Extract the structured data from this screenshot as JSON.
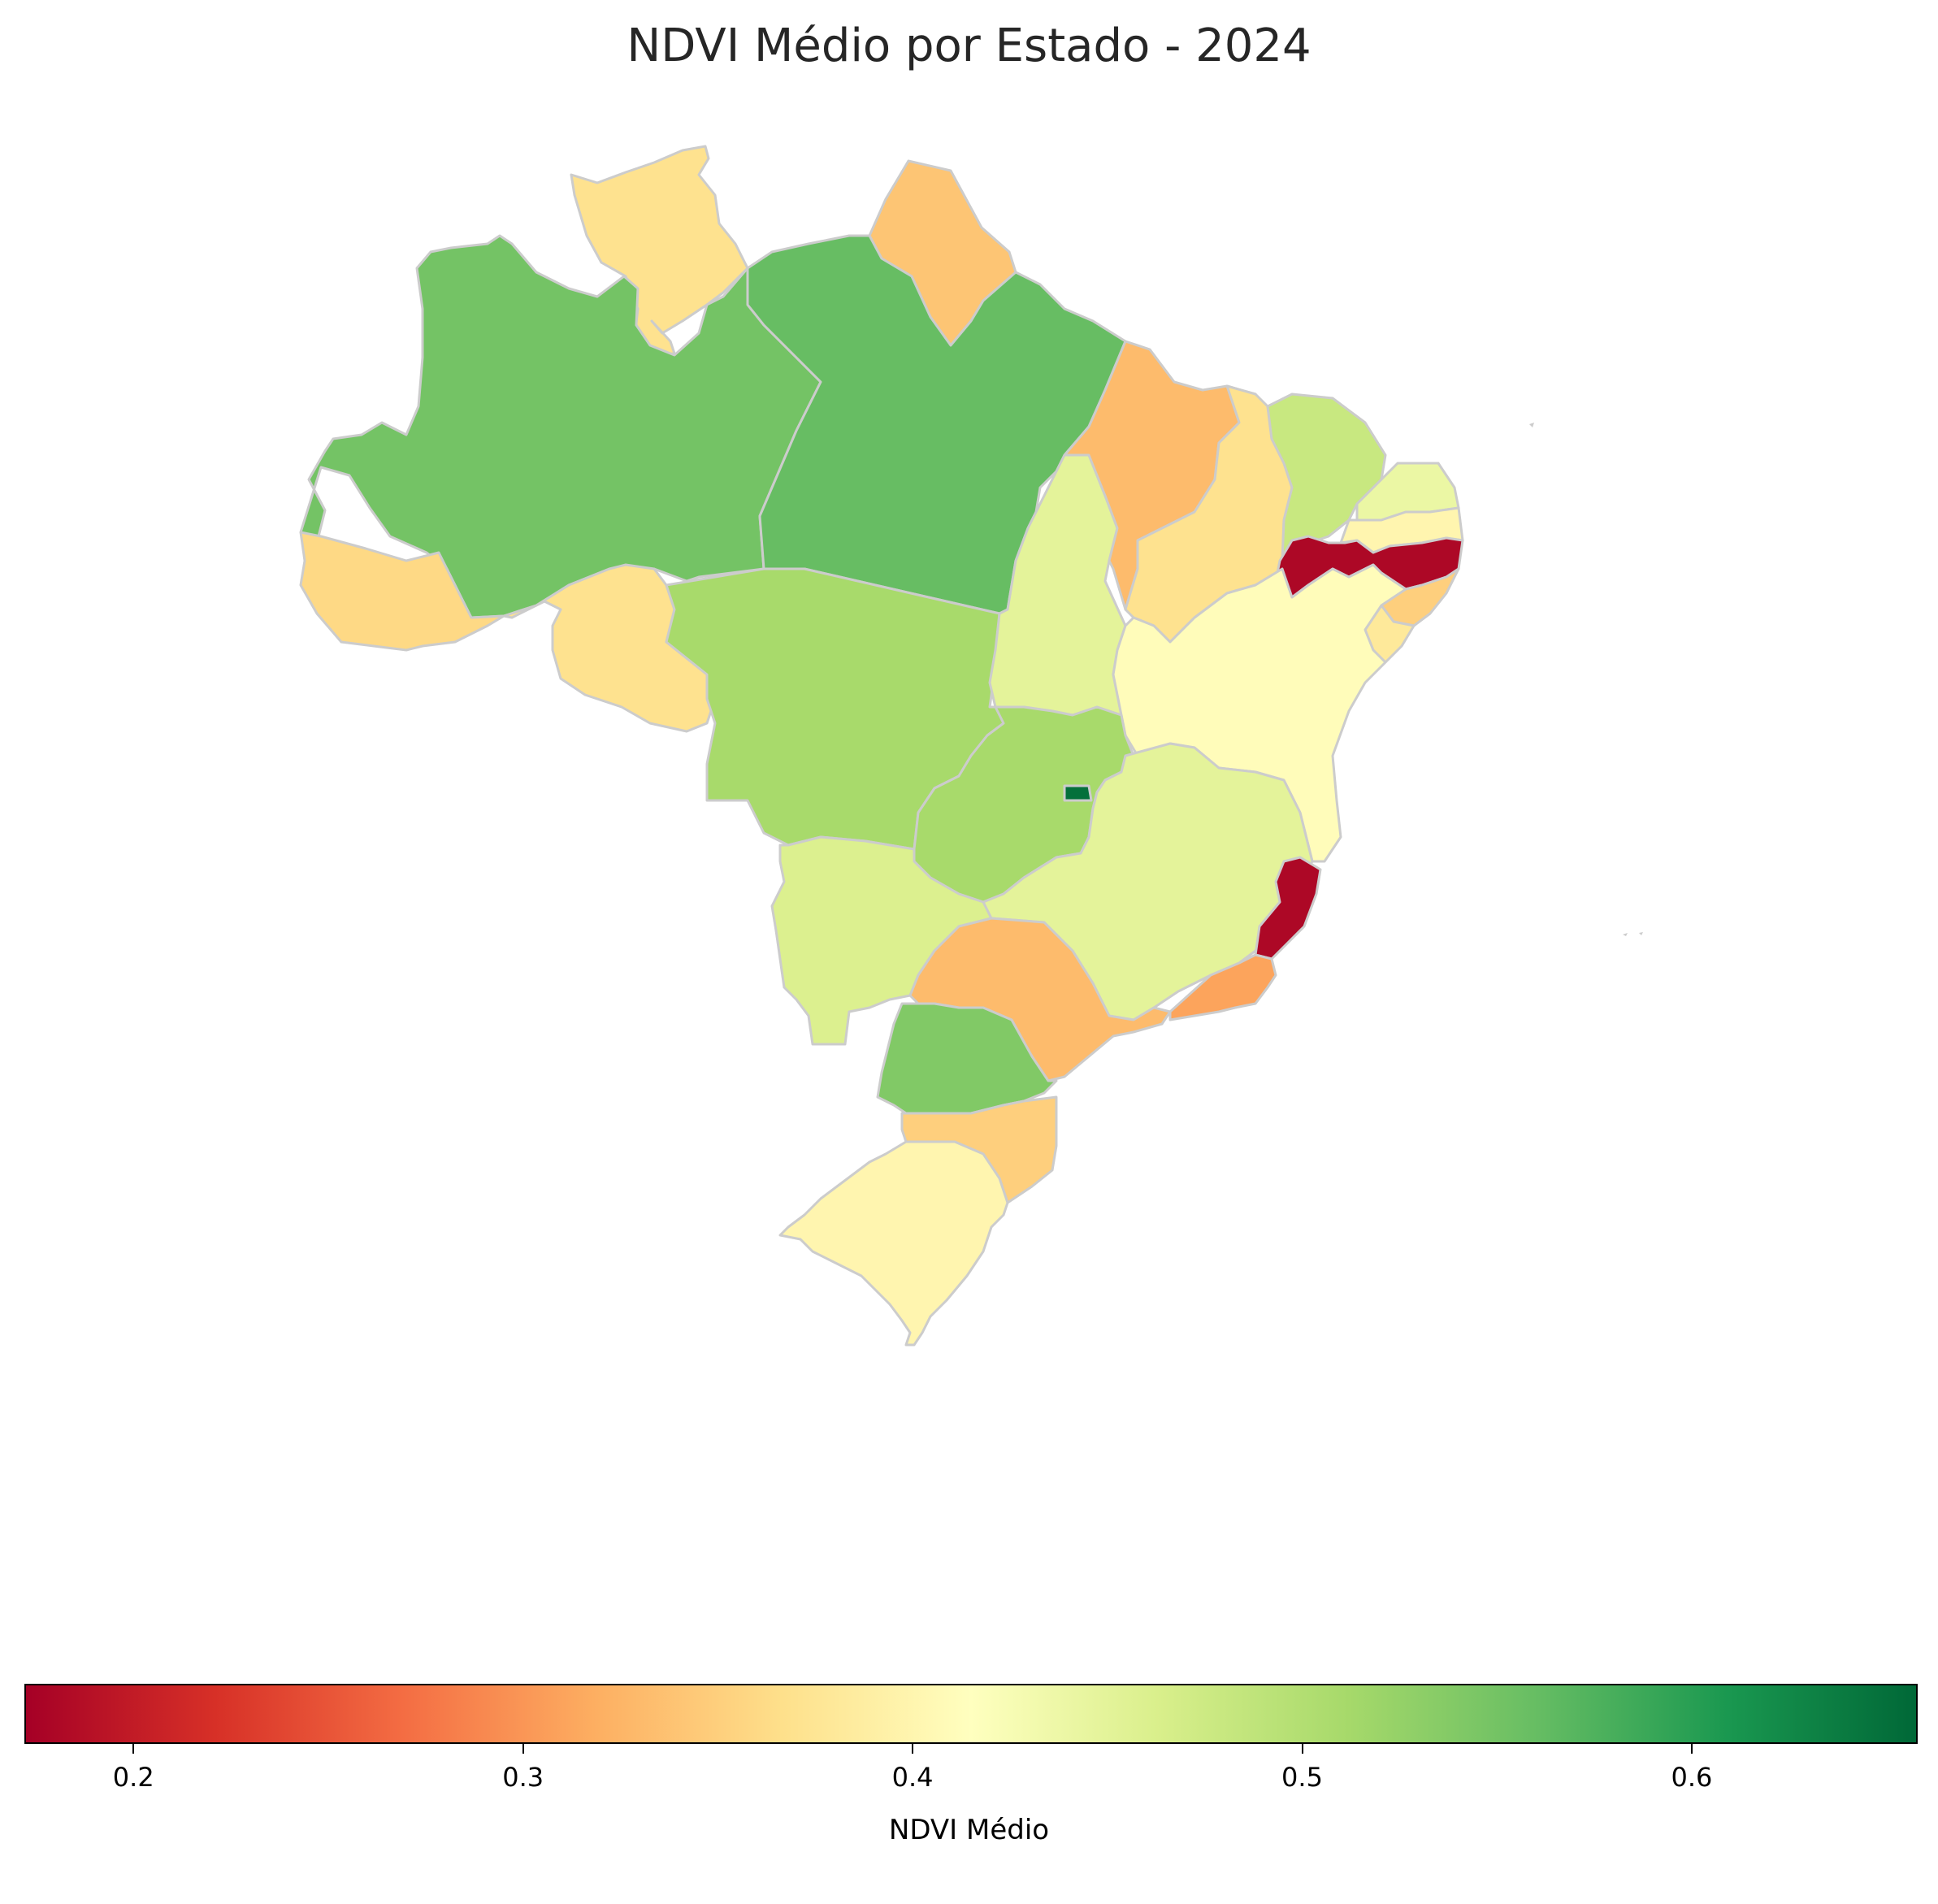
{
  "title": "NDVI Médio por Estado - 2024",
  "colorbar": {
    "label": "NDVI Médio",
    "min": 0.172,
    "max": 0.658,
    "colormap": "RdYlGn",
    "ticks": [
      "0.2",
      "0.3",
      "0.4",
      "0.5",
      "0.6"
    ]
  },
  "colors": {
    "border": "#cccccc",
    "background": "#ffffff"
  },
  "states": [
    {
      "id": "RR",
      "ndvi": 0.37
    },
    {
      "id": "AP",
      "ndvi": 0.34
    },
    {
      "id": "AM",
      "ndvi": 0.55
    },
    {
      "id": "PA",
      "ndvi": 0.56
    },
    {
      "id": "AC",
      "ndvi": 0.36
    },
    {
      "id": "RO",
      "ndvi": 0.37
    },
    {
      "id": "MT",
      "ndvi": 0.51
    },
    {
      "id": "TO",
      "ndvi": 0.45
    },
    {
      "id": "MA",
      "ndvi": 0.33
    },
    {
      "id": "PI",
      "ndvi": 0.37
    },
    {
      "id": "CE",
      "ndvi": 0.48
    },
    {
      "id": "RN",
      "ndvi": 0.44
    },
    {
      "id": "PB",
      "ndvi": 0.4
    },
    {
      "id": "PE",
      "ndvi": 0.18
    },
    {
      "id": "AL",
      "ndvi": 0.35
    },
    {
      "id": "SE",
      "ndvi": 0.38
    },
    {
      "id": "BA",
      "ndvi": 0.41
    },
    {
      "id": "GO",
      "ndvi": 0.51
    },
    {
      "id": "DF",
      "ndvi": 0.65
    },
    {
      "id": "MG",
      "ndvi": 0.45
    },
    {
      "id": "ES",
      "ndvi": 0.18
    },
    {
      "id": "MS",
      "ndvi": 0.46
    },
    {
      "id": "SP",
      "ndvi": 0.33
    },
    {
      "id": "RJ",
      "ndvi": 0.31
    },
    {
      "id": "PR",
      "ndvi": 0.54
    },
    {
      "id": "SC",
      "ndvi": 0.35
    },
    {
      "id": "RS",
      "ndvi": 0.4
    }
  ]
}
